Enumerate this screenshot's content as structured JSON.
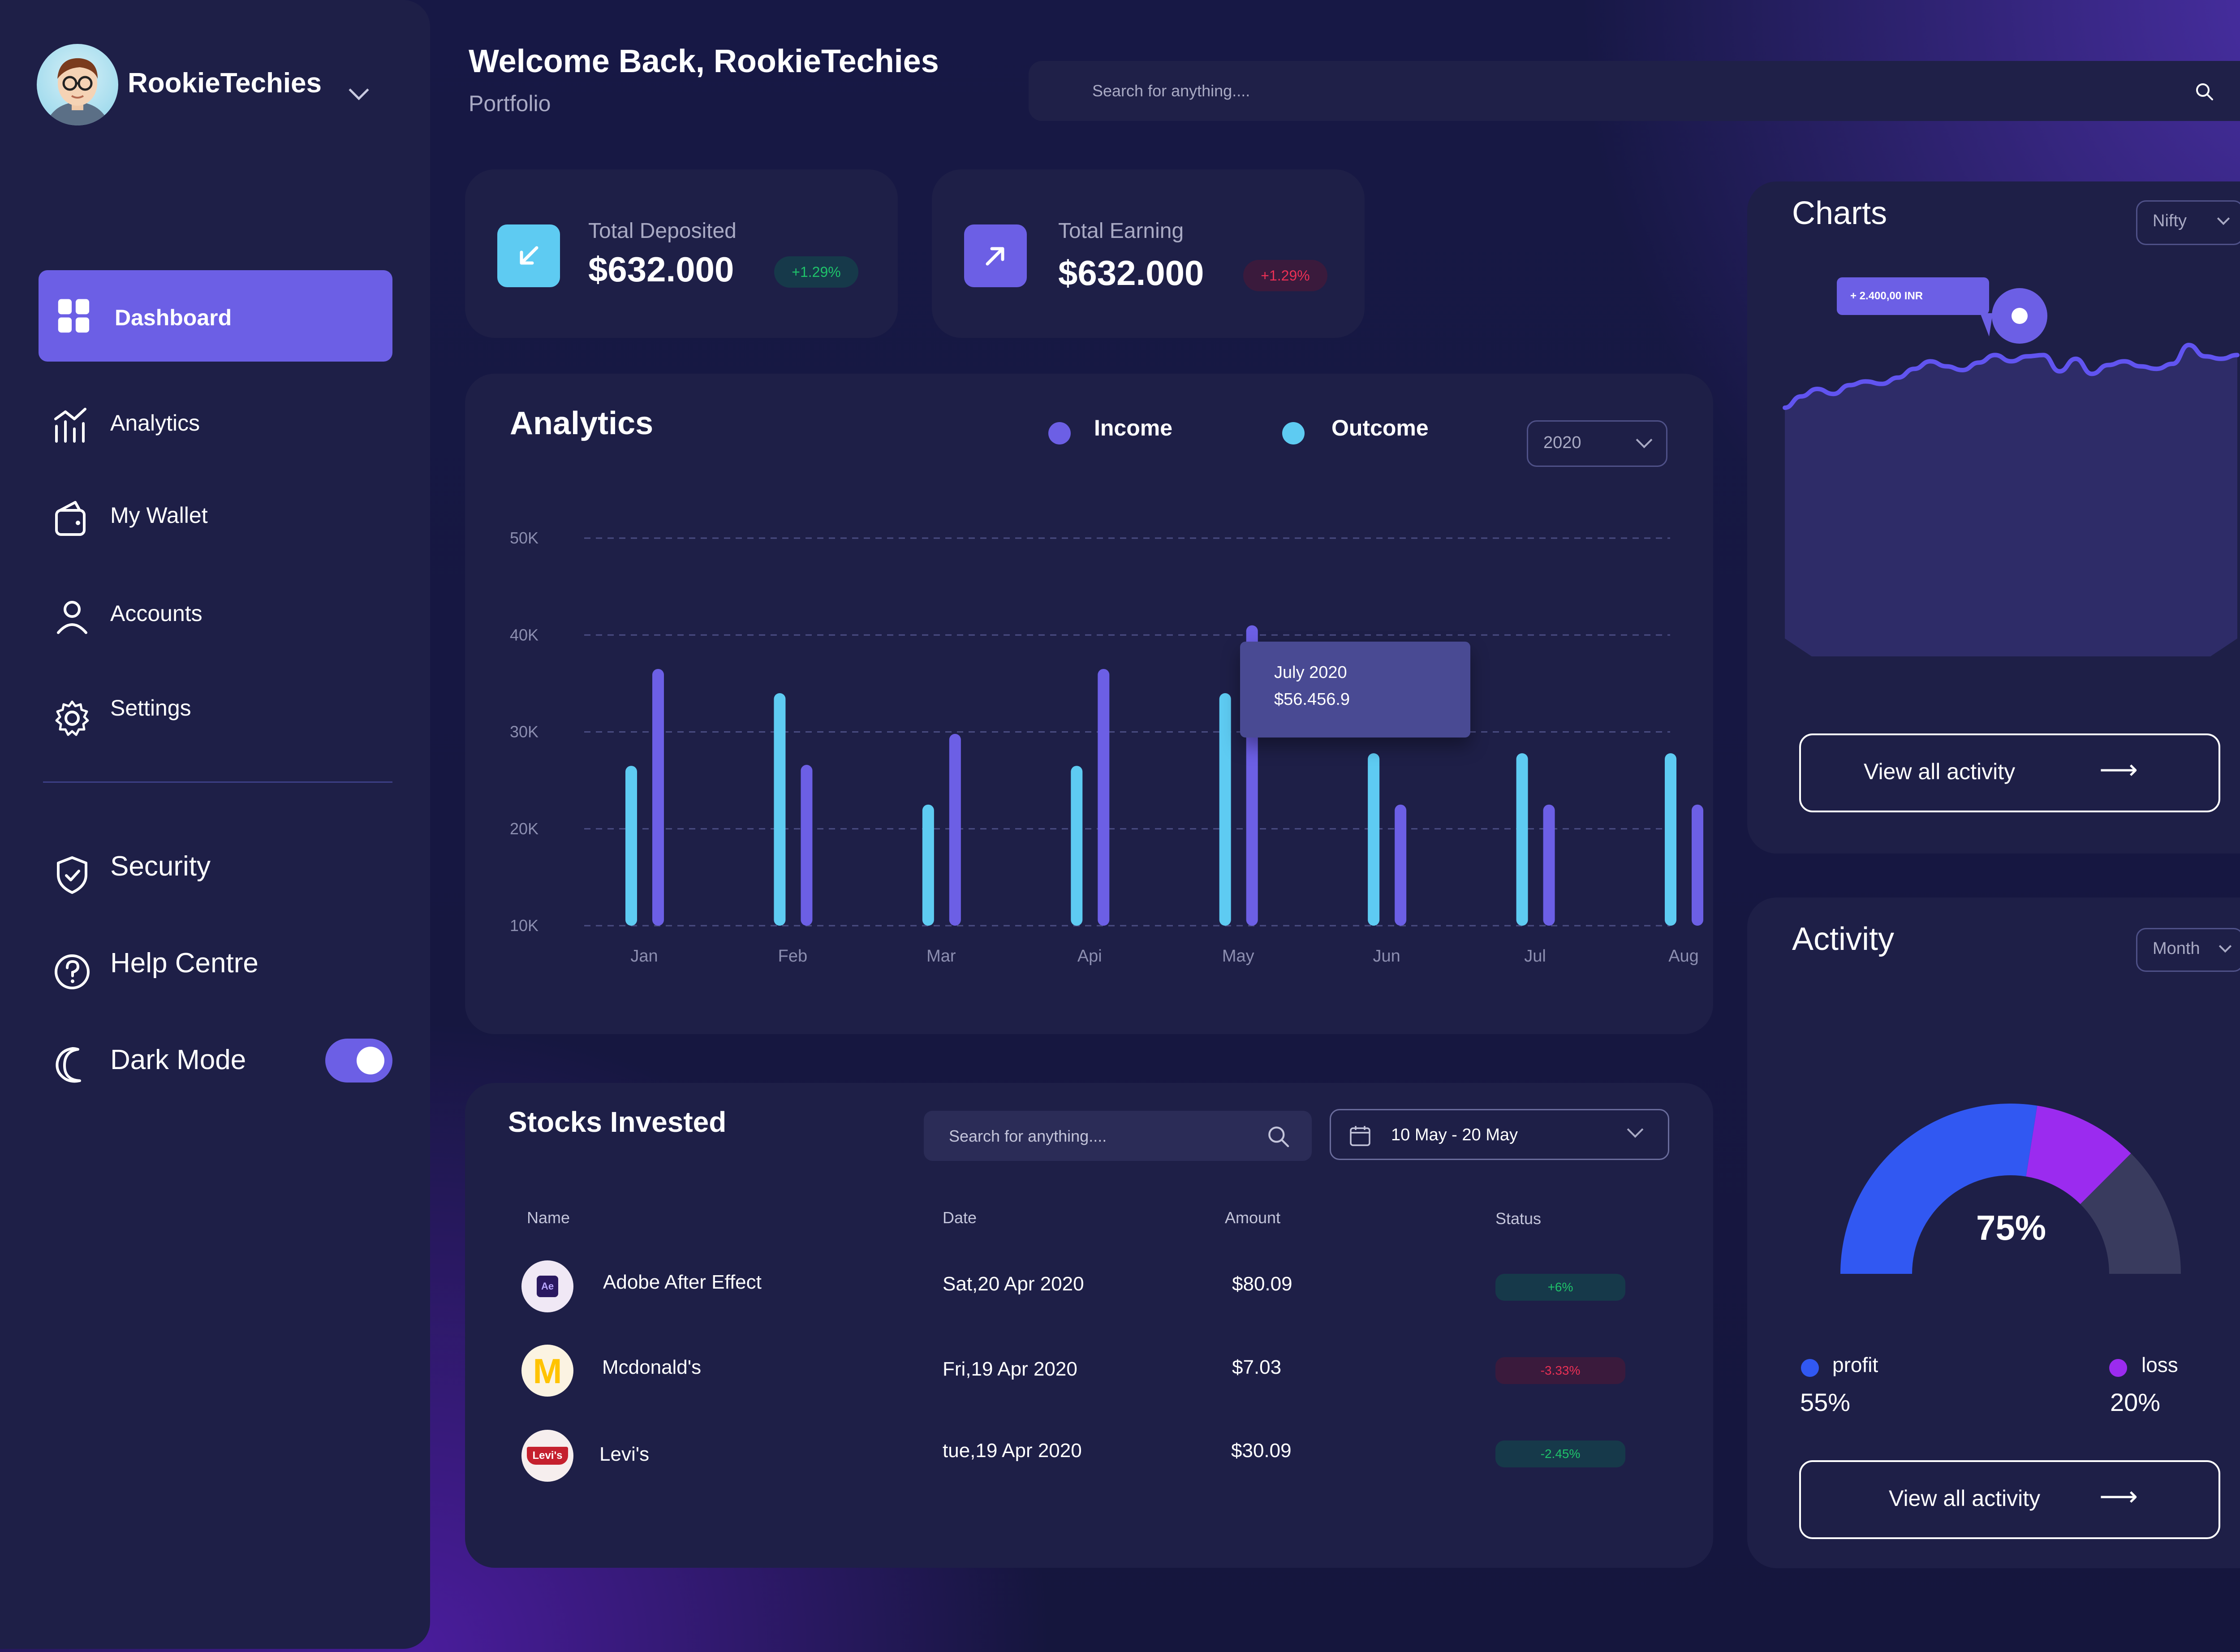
{
  "user": {
    "name": "RookieTechies"
  },
  "sidebar": {
    "items": [
      {
        "label": "Dashboard",
        "icon": "dashboard-icon",
        "active": true
      },
      {
        "label": "Analytics",
        "icon": "analytics-icon"
      },
      {
        "label": "My Wallet",
        "icon": "wallet-icon"
      },
      {
        "label": "Accounts",
        "icon": "user-icon"
      },
      {
        "label": "Settings",
        "icon": "gear-icon"
      }
    ],
    "secondary": [
      {
        "label": "Security",
        "icon": "shield-icon"
      },
      {
        "label": "Help Centre",
        "icon": "help-icon"
      },
      {
        "label": "Dark Mode",
        "icon": "moon-icon",
        "toggle": true
      }
    ]
  },
  "header": {
    "title": "Welcome Back, RookieTechies",
    "subtitle": "Portfolio",
    "search_placeholder": "Search for anything...."
  },
  "stats": [
    {
      "label": "Total Deposited",
      "value": "$632.000",
      "change": "+1.29%",
      "trend": "up",
      "icon": "arrow-down-left-icon"
    },
    {
      "label": "Total Earning",
      "value": "$632.000",
      "change": "+1.29%",
      "trend": "down",
      "icon": "arrow-up-right-icon"
    }
  ],
  "analytics": {
    "title": "Analytics",
    "legend": [
      "Income",
      "Outcome"
    ],
    "year": "2020",
    "tooltip": {
      "title": "July 2020",
      "value": "$56.456.9"
    }
  },
  "chart_data": [
    {
      "type": "bar",
      "title": "Analytics",
      "categories": [
        "Jan",
        "Feb",
        "Mar",
        "Api",
        "May",
        "Jun",
        "Jul",
        "Aug"
      ],
      "series": [
        {
          "name": "Outcome",
          "color": "#5ecbf2",
          "values": [
            26.5,
            34,
            22.5,
            26.5,
            34,
            27.8,
            27.8,
            27.8
          ]
        },
        {
          "name": "Income",
          "color": "#6c5fe5",
          "values": [
            36.5,
            26.6,
            29.8,
            36.5,
            41,
            22.5,
            22.5,
            22.5
          ]
        }
      ],
      "y_ticks": [
        "10K",
        "20K",
        "30K",
        "40K",
        "50K"
      ],
      "ylim": [
        10,
        50
      ],
      "grid": true
    },
    {
      "type": "area",
      "title": "Charts",
      "selector": "Nifty",
      "callout": "+ 2.400,00 INR",
      "values": [
        0.0,
        0.18,
        0.3,
        0.22,
        0.36,
        0.42,
        0.38,
        0.48,
        0.62,
        0.74,
        0.66,
        0.6,
        0.72,
        0.84,
        0.74,
        0.82,
        0.84,
        0.58,
        0.78,
        0.54,
        0.68,
        0.74,
        0.66,
        0.62,
        0.7,
        1.0,
        0.82,
        0.78,
        0.84
      ]
    },
    {
      "type": "pie",
      "title": "Activity",
      "center_label": "75%",
      "slices": [
        {
          "name": "profit",
          "value": 55,
          "color": "#3158f2"
        },
        {
          "name": "loss",
          "value": 20,
          "color": "#9b2bef"
        },
        {
          "name": "remaining",
          "value": 25,
          "color": "#393b5e"
        }
      ]
    }
  ],
  "charts": {
    "title": "Charts",
    "select": "Nifty",
    "callout": "+ 2.400,00 INR",
    "button": "View all activity"
  },
  "stocks": {
    "title": "Stocks Invested",
    "search_placeholder": "Search for anything....",
    "date_range": "10 May - 20 May",
    "columns": [
      "Name",
      "Date",
      "Amount",
      "Status"
    ],
    "rows": [
      {
        "name": "Adobe After Effect",
        "date": "Sat,20 Apr 2020",
        "amount": "$80.09",
        "status": "+6%",
        "status_type": "up",
        "logo": "Ae"
      },
      {
        "name": "Mcdonald's",
        "date": "Fri,19 Apr 2020",
        "amount": "$7.03",
        "status": "-3.33%",
        "status_type": "down",
        "logo": "M"
      },
      {
        "name": "Levi's",
        "date": "tue,19 Apr 2020",
        "amount": "$30.09",
        "status": "-2.45%",
        "status_type": "up",
        "logo": "Levi's"
      }
    ]
  },
  "activity": {
    "title": "Activity",
    "select": "Month",
    "center": "75%",
    "profit_label": "profit",
    "profit_value": "55%",
    "loss_label": "loss",
    "loss_value": "20%",
    "button": "View all activity"
  },
  "colors": {
    "accent": "#6c5fe5",
    "cyan": "#5ecbf2",
    "card": "#1e1f47",
    "bg": "#171845"
  }
}
